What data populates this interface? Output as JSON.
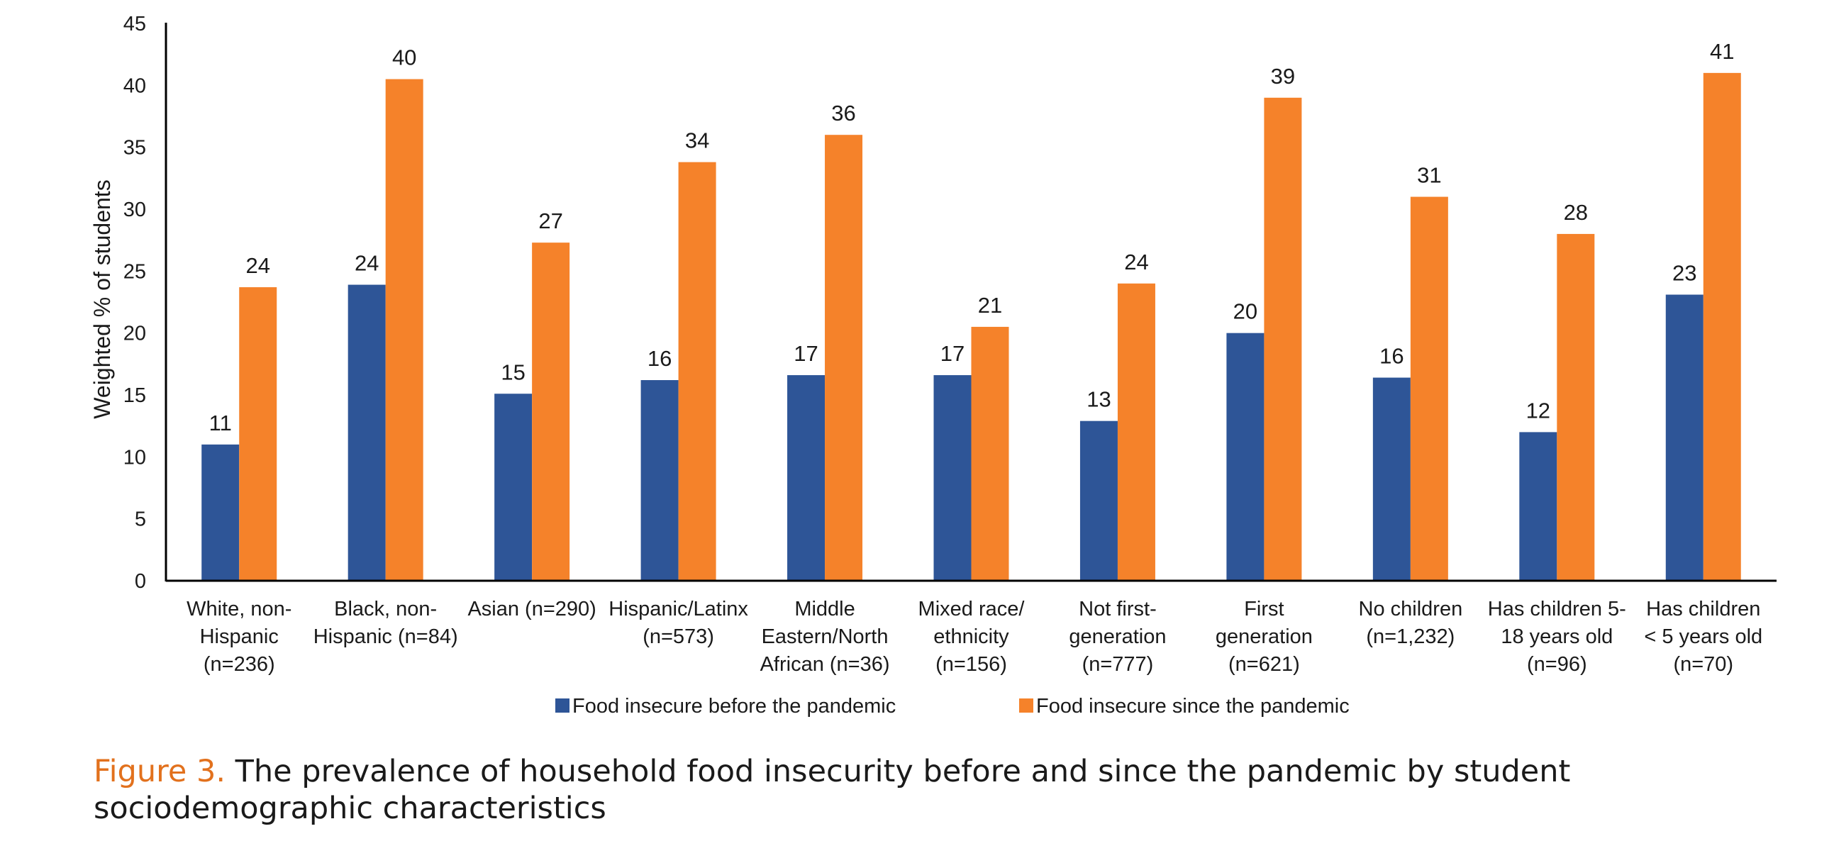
{
  "chart_data": {
    "type": "bar",
    "title": "",
    "xlabel": "",
    "ylabel": "Weighted % of students",
    "ylim": [
      0,
      45
    ],
    "ytick_step": 5,
    "grid": false,
    "legend_position": "bottom",
    "categories": [
      [
        "White, non-",
        "Hispanic",
        "(n=236)"
      ],
      [
        "Black, non-",
        "Hispanic (n=84)"
      ],
      [
        "Asian (n=290)"
      ],
      [
        "Hispanic/Latinx",
        "(n=573)"
      ],
      [
        "Middle",
        "Eastern/North",
        "African (n=36)"
      ],
      [
        "Mixed race/",
        "ethnicity",
        "(n=156)"
      ],
      [
        "Not first-",
        "generation",
        "(n=777)"
      ],
      [
        "First",
        "generation",
        "(n=621)"
      ],
      [
        "No children",
        "(n=1,232)"
      ],
      [
        "Has children 5-",
        "18 years old",
        "(n=96)"
      ],
      [
        "Has children",
        "< 5 years old",
        "(n=70)"
      ]
    ],
    "series": [
      {
        "name": "Food insecure before the pandemic",
        "color": "#2E5597",
        "values": [
          11.0,
          23.9,
          15.1,
          16.2,
          16.6,
          16.6,
          12.9,
          20.0,
          16.4,
          12.0,
          23.1
        ],
        "labels": [
          "11",
          "24",
          "15",
          "16",
          "17",
          "17",
          "13",
          "20",
          "16",
          "12",
          "23"
        ]
      },
      {
        "name": "Food insecure since the pandemic",
        "color": "#F5822A",
        "values": [
          23.7,
          40.5,
          27.3,
          33.8,
          36.0,
          20.5,
          24.0,
          39.0,
          31.0,
          28.0,
          41.0
        ],
        "labels": [
          "24",
          "40",
          "27",
          "34",
          "36",
          "21",
          "24",
          "39",
          "31",
          "28",
          "41"
        ]
      }
    ]
  },
  "caption": {
    "label": "Figure 3.",
    "text": " The prevalence of household food insecurity before and since the pandemic by student sociodemographic characteristics"
  }
}
